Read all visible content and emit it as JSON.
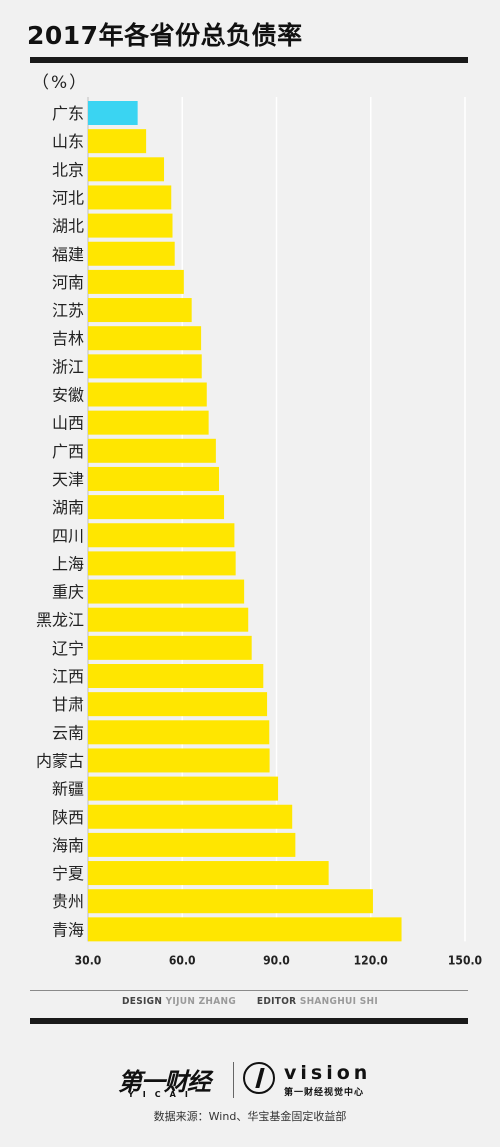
{
  "header": {
    "title": "2017年各省份总负债率",
    "unit": "（%）"
  },
  "chart_data": {
    "type": "bar",
    "orientation": "horizontal",
    "title": "2017年各省份总负债率",
    "xlim": [
      30,
      150
    ],
    "ticks": [
      "30.0",
      "60.0",
      "90.0",
      "120.0",
      "150.0"
    ],
    "tick_values": [
      30,
      60,
      90,
      120,
      150
    ],
    "grid": true,
    "categories": [
      "广东",
      "山东",
      "北京",
      "河北",
      "湖北",
      "福建",
      "河南",
      "江苏",
      "吉林",
      "浙江",
      "安徽",
      "山西",
      "广西",
      "天津",
      "湖南",
      "四川",
      "上海",
      "重庆",
      "黑龙江",
      "辽宁",
      "江西",
      "甘肃",
      "云南",
      "内蒙古",
      "新疆",
      "陕西",
      "海南",
      "宁夏",
      "贵州",
      "青海"
    ],
    "values": [
      45.8,
      48.5,
      54.2,
      56.5,
      56.9,
      57.6,
      60.5,
      63.0,
      66.0,
      66.2,
      67.8,
      68.4,
      70.7,
      71.7,
      73.3,
      76.6,
      77.0,
      79.7,
      81.0,
      82.1,
      85.8,
      87.0,
      87.7,
      87.8,
      90.5,
      95.0,
      96.0,
      106.6,
      120.7,
      129.8
    ],
    "colors": {
      "highlight": "#3ad4f2",
      "bar": "#ffe600",
      "grid": "#ffffff"
    },
    "highlight_index": 0
  },
  "credits": {
    "design_label": "DESIGN",
    "design_name": "YIJUN ZHANG",
    "editor_label": "EDITOR",
    "editor_name": "SHANGHUI SHI"
  },
  "brand": {
    "left": "第一财经",
    "left_sub": "YICAI",
    "right": "vision",
    "right_sub": "第一财经视觉中心"
  },
  "source": "数据来源：Wind、华宝基金固定收益部"
}
